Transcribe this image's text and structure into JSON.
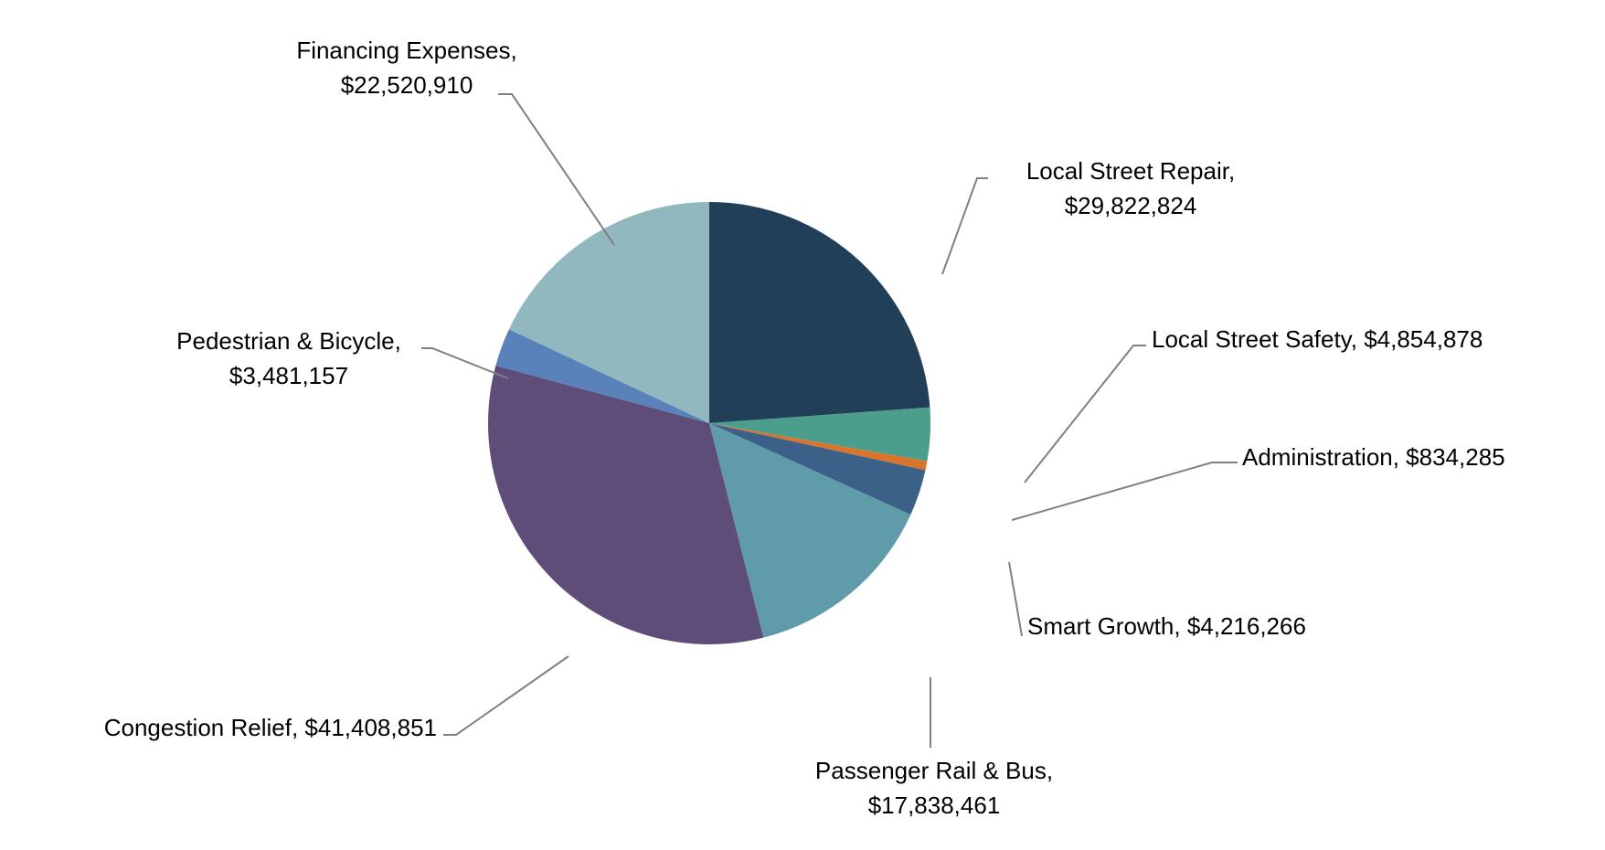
{
  "chart_data": {
    "type": "pie",
    "title": "",
    "start_angle_deg": 0,
    "direction": "clockwise",
    "categories": [
      "Local Street Repair",
      "Local Street Safety",
      "Administration",
      "Smart Growth",
      "Passenger Rail & Bus",
      "Congestion Relief",
      "Pedestrian & Bicycle",
      "Financing Expenses"
    ],
    "values": [
      29822824,
      4854878,
      834285,
      4216266,
      17838461,
      41408851,
      3481157,
      22520910
    ],
    "colors": [
      "#223f58",
      "#4b9e8c",
      "#d8742c",
      "#3c6188",
      "#5f9ba8",
      "#5d4d78",
      "#5a82ba",
      "#91b7bf"
    ],
    "labels": [
      {
        "line1": "Local Street Repair,",
        "line2": "$29,822,824"
      },
      {
        "line1": "Local Street Safety, $4,854,878",
        "line2": ""
      },
      {
        "line1": "Administration, $834,285",
        "line2": ""
      },
      {
        "line1": "Smart Growth, $4,216,266",
        "line2": ""
      },
      {
        "line1": "Passenger Rail & Bus,",
        "line2": "$17,838,461"
      },
      {
        "line1": "Congestion Relief, $41,408,851",
        "line2": ""
      },
      {
        "line1": "Pedestrian & Bicycle,",
        "line2": "$3,481,157"
      },
      {
        "line1": "Financing Expenses,",
        "line2": "$22,520,910"
      }
    ],
    "legend": "none (data labels with leader lines)"
  }
}
